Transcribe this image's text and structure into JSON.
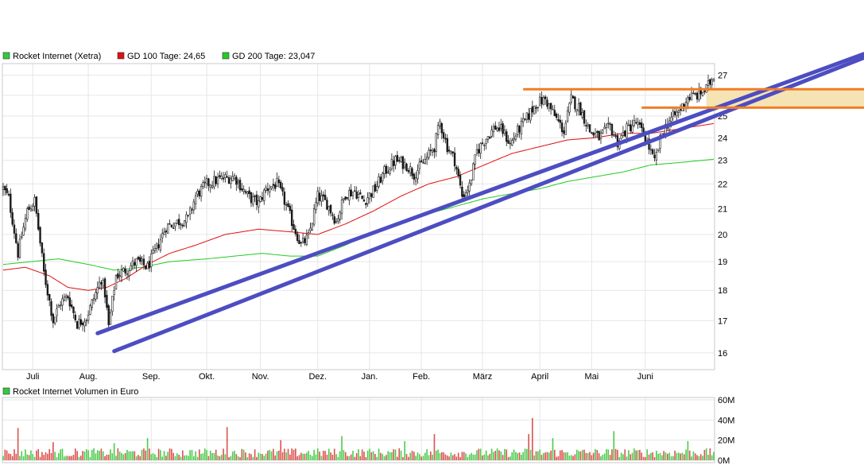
{
  "chart_data": [
    {
      "type": "candlestick",
      "legend": [
        {
          "label": "Rocket Internet (Xetra)",
          "color": "#2ecc40"
        },
        {
          "label": "GD 100 Tage: 24,65",
          "color": "#e01010"
        },
        {
          "label": "GD 200 Tage: 23,047",
          "color": "#22cc22"
        }
      ],
      "y_ticks": [
        16,
        17,
        18,
        19,
        20,
        21,
        22,
        23,
        24,
        25,
        26,
        27
      ],
      "ylim": [
        15.5,
        27.6
      ],
      "y_scale": "log",
      "x_ticks": [
        "Juli",
        "Aug.",
        "Sep.",
        "Okt.",
        "Nov.",
        "Dez.",
        "Jan.",
        "Feb.",
        "März",
        "April",
        "Mai",
        "Juni"
      ],
      "x_tick_positions": [
        16,
        46,
        80,
        110,
        139,
        170,
        198,
        226,
        259,
        290,
        318,
        347
      ],
      "n_days": 385,
      "grid": true,
      "price_anchors": [
        [
          0,
          21.8
        ],
        [
          3,
          21.4
        ],
        [
          8,
          19.3
        ],
        [
          13,
          20.9
        ],
        [
          17,
          21.3
        ],
        [
          22,
          18.6
        ],
        [
          27,
          17.0
        ],
        [
          31,
          17.6
        ],
        [
          35,
          17.8
        ],
        [
          40,
          16.9
        ],
        [
          45,
          17.1
        ],
        [
          50,
          17.9
        ],
        [
          53,
          18.4
        ],
        [
          55,
          17.9
        ],
        [
          57,
          16.8
        ],
        [
          61,
          18.5
        ],
        [
          66,
          18.7
        ],
        [
          72,
          19.0
        ],
        [
          78,
          18.8
        ],
        [
          83,
          19.5
        ],
        [
          88,
          20.3
        ],
        [
          95,
          20.5
        ],
        [
          100,
          20.6
        ],
        [
          104,
          21.5
        ],
        [
          110,
          22.0
        ],
        [
          117,
          22.2
        ],
        [
          125,
          22.3
        ],
        [
          132,
          21.5
        ],
        [
          138,
          21.2
        ],
        [
          142,
          21.8
        ],
        [
          148,
          22.0
        ],
        [
          152,
          21.3
        ],
        [
          157,
          20.3
        ],
        [
          161,
          19.6
        ],
        [
          165,
          19.9
        ],
        [
          170,
          21.5
        ],
        [
          175,
          21.2
        ],
        [
          180,
          20.5
        ],
        [
          185,
          21.6
        ],
        [
          190,
          21.7
        ],
        [
          195,
          21.3
        ],
        [
          201,
          21.8
        ],
        [
          206,
          22.5
        ],
        [
          212,
          23.0
        ],
        [
          218,
          22.8
        ],
        [
          222,
          22.4
        ],
        [
          228,
          23.0
        ],
        [
          233,
          23.6
        ],
        [
          236,
          24.7
        ],
        [
          240,
          23.6
        ],
        [
          244,
          23.0
        ],
        [
          248,
          21.5
        ],
        [
          252,
          21.9
        ],
        [
          256,
          23.4
        ],
        [
          261,
          24.0
        ],
        [
          266,
          24.5
        ],
        [
          270,
          24.3
        ],
        [
          274,
          23.7
        ],
        [
          278,
          24.3
        ],
        [
          283,
          24.9
        ],
        [
          288,
          25.6
        ],
        [
          293,
          25.8
        ],
        [
          298,
          25.0
        ],
        [
          303,
          24.3
        ],
        [
          307,
          25.8
        ],
        [
          312,
          25.3
        ],
        [
          317,
          24.3
        ],
        [
          322,
          24.0
        ],
        [
          328,
          24.5
        ],
        [
          332,
          23.8
        ],
        [
          337,
          24.4
        ],
        [
          342,
          24.7
        ],
        [
          347,
          24.0
        ],
        [
          352,
          22.9
        ],
        [
          356,
          24.2
        ],
        [
          360,
          24.8
        ],
        [
          365,
          25.2
        ],
        [
          370,
          25.9
        ],
        [
          375,
          26.0
        ],
        [
          380,
          26.3
        ],
        [
          384,
          27.0
        ]
      ],
      "gd100_anchors": [
        [
          0,
          18.7
        ],
        [
          12,
          18.8
        ],
        [
          25,
          18.5
        ],
        [
          35,
          18.1
        ],
        [
          46,
          18.0
        ],
        [
          56,
          18.1
        ],
        [
          66,
          18.4
        ],
        [
          78,
          18.9
        ],
        [
          90,
          19.3
        ],
        [
          104,
          19.6
        ],
        [
          120,
          20.0
        ],
        [
          138,
          20.2
        ],
        [
          155,
          20.1
        ],
        [
          170,
          20.0
        ],
        [
          185,
          20.4
        ],
        [
          200,
          20.9
        ],
        [
          215,
          21.5
        ],
        [
          230,
          22.0
        ],
        [
          245,
          22.3
        ],
        [
          260,
          22.8
        ],
        [
          275,
          23.3
        ],
        [
          290,
          23.6
        ],
        [
          305,
          23.9
        ],
        [
          320,
          24.0
        ],
        [
          335,
          24.2
        ],
        [
          350,
          24.2
        ],
        [
          365,
          24.4
        ],
        [
          384,
          24.65
        ]
      ],
      "gd200_anchors": [
        [
          0,
          18.9
        ],
        [
          15,
          19.0
        ],
        [
          30,
          19.1
        ],
        [
          46,
          18.9
        ],
        [
          60,
          18.7
        ],
        [
          75,
          18.8
        ],
        [
          90,
          19.0
        ],
        [
          110,
          19.1
        ],
        [
          125,
          19.2
        ],
        [
          140,
          19.3
        ],
        [
          155,
          19.2
        ],
        [
          170,
          19.2
        ],
        [
          185,
          19.6
        ],
        [
          200,
          20.1
        ],
        [
          215,
          20.4
        ],
        [
          230,
          20.8
        ],
        [
          245,
          21.1
        ],
        [
          260,
          21.4
        ],
        [
          275,
          21.6
        ],
        [
          290,
          21.8
        ],
        [
          305,
          22.1
        ],
        [
          320,
          22.3
        ],
        [
          335,
          22.5
        ],
        [
          350,
          22.8
        ],
        [
          365,
          22.9
        ],
        [
          384,
          23.047
        ]
      ],
      "trendlines": [
        {
          "name": "support-line-upper",
          "color": "#4d4dc2",
          "from": [
            51,
            16.6
          ],
          "to": [
            465,
            28.1
          ]
        },
        {
          "name": "support-line-lower",
          "color": "#4d4dc2",
          "from": [
            60,
            16.05
          ],
          "to": [
            465,
            27.9
          ]
        }
      ],
      "resistance_lines": [
        {
          "color": "#f07d26",
          "from_day": 281,
          "value": 26.3
        },
        {
          "color": "#f07d26",
          "from_day": 345,
          "value": 25.4
        }
      ],
      "resistance_zone": {
        "from_day": 380,
        "low": 25.4,
        "high": 26.3,
        "color": "#f6e3b4"
      }
    },
    {
      "type": "bar",
      "legend": [
        {
          "label": "Rocket Internet Volumen in Euro",
          "color": "#2ecc40"
        }
      ],
      "y_ticks": [
        {
          "value": 0,
          "label": "0M"
        },
        {
          "value": 20,
          "label": "20M"
        },
        {
          "value": 40,
          "label": "40M"
        },
        {
          "value": 60,
          "label": "60M"
        }
      ],
      "ylim": [
        0,
        60
      ],
      "unit": "Mio. Euro",
      "spikes": [
        {
          "day": 8,
          "value": 32
        },
        {
          "day": 27,
          "value": 18
        },
        {
          "day": 60,
          "value": 17
        },
        {
          "day": 78,
          "value": 22
        },
        {
          "day": 121,
          "value": 33
        },
        {
          "day": 150,
          "value": 20
        },
        {
          "day": 183,
          "value": 24
        },
        {
          "day": 217,
          "value": 19
        },
        {
          "day": 233,
          "value": 26
        },
        {
          "day": 284,
          "value": 26
        },
        {
          "day": 286,
          "value": 42
        },
        {
          "day": 297,
          "value": 22
        },
        {
          "day": 330,
          "value": 29
        },
        {
          "day": 370,
          "value": 19
        }
      ],
      "typical_range": [
        3,
        12
      ]
    }
  ]
}
